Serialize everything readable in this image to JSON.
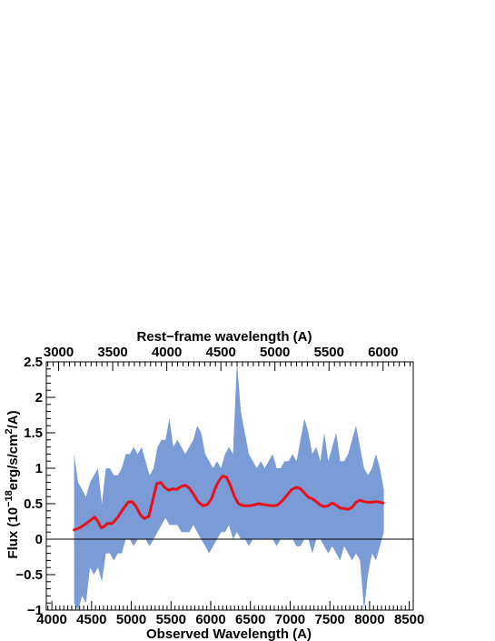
{
  "chart_data": {
    "type": "line",
    "title": "",
    "xlabel": "Observed Wavelength (A)",
    "xlabel_top": "Rest−frame wavelength (A)",
    "ylabel": {
      "prefix": "Flux (10",
      "exp": "−18",
      "mid": "erg/s/cm",
      "exp2": "2",
      "suffix": "/A)"
    },
    "xlim": [
      3930,
      8550
    ],
    "ylim": [
      -1,
      2.5
    ],
    "x_ticks": [
      4000,
      4500,
      5000,
      5500,
      6000,
      6500,
      7000,
      7500,
      8000,
      8500
    ],
    "x_tick_labels": [
      "4000",
      "4500",
      "5000",
      "5500",
      "6000",
      "6500",
      "7000",
      "7500",
      "8000",
      "8500"
    ],
    "y_ticks": [
      -1,
      -0.5,
      0,
      0.5,
      1,
      1.5,
      2,
      2.5
    ],
    "y_tick_labels": [
      "−1",
      "−0.5",
      "0",
      "0.5",
      "1",
      "1.5",
      "2",
      "2.5"
    ],
    "top_axis": {
      "z_factor": 1.3617,
      "ticks": [
        3000,
        3500,
        4000,
        4500,
        5000,
        5500,
        6000
      ],
      "tick_labels": [
        "3000",
        "3500",
        "4000",
        "4500",
        "5000",
        "5500",
        "6000"
      ]
    },
    "zero_line": 0,
    "series": [
      {
        "style": "band",
        "color": "#7b9bd6",
        "x": [
          4280,
          4330,
          4380,
          4430,
          4480,
          4530,
          4580,
          4630,
          4680,
          4730,
          4780,
          4830,
          4880,
          4930,
          4980,
          5030,
          5080,
          5130,
          5180,
          5230,
          5280,
          5330,
          5380,
          5430,
          5480,
          5530,
          5580,
          5630,
          5680,
          5730,
          5780,
          5830,
          5880,
          5930,
          5980,
          6030,
          6080,
          6130,
          6180,
          6230,
          6280,
          6330,
          6380,
          6430,
          6480,
          6530,
          6580,
          6630,
          6680,
          6730,
          6780,
          6830,
          6880,
          6930,
          6980,
          7030,
          7080,
          7130,
          7180,
          7230,
          7280,
          7330,
          7380,
          7430,
          7480,
          7530,
          7580,
          7630,
          7680,
          7730,
          7780,
          7830,
          7880,
          7930,
          7980,
          8030,
          8080,
          8130,
          8180
        ],
        "upper": [
          1.2,
          0.8,
          0.7,
          0.6,
          0.8,
          0.9,
          1.0,
          0.5,
          1.0,
          1.0,
          0.9,
          0.9,
          1.0,
          1.2,
          1.2,
          1.3,
          1.2,
          1.3,
          1.1,
          0.9,
          1.0,
          1.3,
          1.4,
          1.4,
          1.7,
          1.3,
          1.4,
          1.3,
          1.2,
          1.3,
          1.4,
          1.6,
          1.5,
          1.2,
          1.1,
          1.0,
          1.1,
          1.0,
          1.2,
          1.3,
          1.2,
          2.5,
          1.8,
          1.5,
          1.2,
          1.1,
          1.0,
          1.1,
          1.0,
          1.1,
          1.2,
          1.0,
          1.0,
          1.1,
          1.1,
          1.2,
          1.1,
          1.4,
          1.7,
          1.5,
          1.2,
          1.3,
          1.1,
          1.5,
          1.1,
          1.3,
          1.5,
          1.1,
          1.1,
          1.2,
          1.4,
          1.6,
          1.3,
          1.0,
          0.9,
          1.0,
          1.2,
          1.0,
          0.7
        ],
        "lower": [
          -0.9,
          -1.0,
          -0.8,
          -0.9,
          -0.4,
          -0.5,
          -0.4,
          -0.6,
          -0.2,
          -0.2,
          -0.3,
          -0.2,
          -0.2,
          0.0,
          0.0,
          -0.1,
          0.0,
          0.0,
          0.0,
          -0.1,
          0.0,
          0.1,
          0.2,
          0.3,
          0.2,
          0.2,
          0.2,
          0.1,
          0.1,
          0.1,
          0.2,
          0.1,
          0.0,
          -0.1,
          -0.2,
          -0.1,
          0.0,
          0.1,
          0.1,
          0.2,
          0.0,
          0.1,
          0.0,
          0.0,
          -0.1,
          0.0,
          0.0,
          0.0,
          0.0,
          0.0,
          0.0,
          -0.1,
          0.0,
          0.0,
          0.0,
          0.0,
          -0.1,
          -0.1,
          0.0,
          0.0,
          -0.2,
          0.0,
          0.0,
          -0.1,
          -0.2,
          -0.1,
          -0.2,
          -0.3,
          -0.1,
          -0.2,
          -0.3,
          -0.2,
          -0.3,
          -1.0,
          -0.5,
          -0.2,
          -0.3,
          -0.1,
          0.1
        ]
      },
      {
        "style": "line",
        "color": "#e8101a",
        "x": [
          4280,
          4350,
          4420,
          4490,
          4540,
          4580,
          4620,
          4660,
          4700,
          4760,
          4830,
          4900,
          4960,
          5010,
          5060,
          5110,
          5160,
          5220,
          5270,
          5320,
          5370,
          5420,
          5470,
          5520,
          5570,
          5620,
          5680,
          5730,
          5780,
          5840,
          5900,
          5960,
          6010,
          6050,
          6100,
          6150,
          6200,
          6250,
          6300,
          6350,
          6390,
          6430,
          6480,
          6530,
          6600,
          6660,
          6720,
          6780,
          6840,
          6900,
          6960,
          7020,
          7080,
          7130,
          7180,
          7230,
          7280,
          7330,
          7380,
          7430,
          7480,
          7530,
          7580,
          7630,
          7680,
          7730,
          7780,
          7830,
          7880,
          7930,
          7980,
          8030,
          8080,
          8130,
          8170
        ],
        "y": [
          0.13,
          0.16,
          0.21,
          0.27,
          0.31,
          0.25,
          0.16,
          0.18,
          0.22,
          0.22,
          0.31,
          0.43,
          0.52,
          0.53,
          0.46,
          0.35,
          0.29,
          0.32,
          0.55,
          0.78,
          0.8,
          0.73,
          0.69,
          0.71,
          0.7,
          0.74,
          0.76,
          0.72,
          0.64,
          0.53,
          0.47,
          0.49,
          0.57,
          0.7,
          0.82,
          0.89,
          0.87,
          0.75,
          0.6,
          0.5,
          0.48,
          0.47,
          0.47,
          0.48,
          0.5,
          0.49,
          0.48,
          0.47,
          0.48,
          0.54,
          0.62,
          0.7,
          0.73,
          0.71,
          0.65,
          0.59,
          0.57,
          0.53,
          0.48,
          0.46,
          0.47,
          0.51,
          0.48,
          0.44,
          0.43,
          0.42,
          0.45,
          0.52,
          0.55,
          0.53,
          0.52,
          0.52,
          0.53,
          0.52,
          0.51
        ]
      }
    ]
  }
}
